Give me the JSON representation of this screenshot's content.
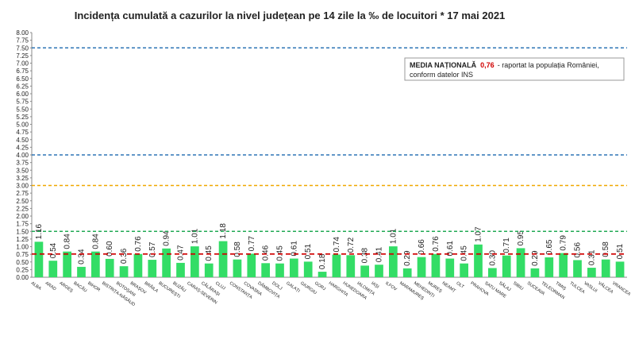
{
  "chart_data": {
    "type": "bar",
    "title": "Incidența cumulată a cazurilor la nivel județean pe 14 zile la ‰ de locuitori *  17 mai 2021",
    "categories": [
      "ALBA",
      "ARAD",
      "ARGEȘ",
      "BACĂU",
      "BIHOR",
      "BISTRIȚA-NĂSĂUD",
      "BOTOȘANI",
      "BRAȘOV",
      "BRĂILA",
      "BUCUREȘTI",
      "BUZĂU",
      "CARAȘ-SEVERIN",
      "CĂLĂRAȘI",
      "CLUJ",
      "CONSTANȚA",
      "COVASNA",
      "DÂMBOVIȚA",
      "DOLJ",
      "GALAȚI",
      "GIURGIU",
      "GORJ",
      "HARGHITA",
      "HUNEDOARA",
      "IALOMIȚA",
      "IAȘI",
      "ILFOV",
      "MARAMUREȘ",
      "MEHEDINȚI",
      "MUREȘ",
      "NEAMȚ",
      "OLT",
      "PRAHOVA",
      "SATU MARE",
      "SĂLAJ",
      "SIBIU",
      "SUCEAVA",
      "TELEORMAN",
      "TIMIȘ",
      "TULCEA",
      "VASLUI",
      "VÂLCEA",
      "VRANCEA"
    ],
    "values": [
      1.16,
      0.54,
      0.84,
      0.34,
      0.84,
      0.6,
      0.36,
      0.76,
      0.57,
      0.94,
      0.47,
      1.01,
      0.45,
      1.18,
      0.58,
      0.77,
      0.46,
      0.45,
      0.61,
      0.51,
      0.18,
      0.74,
      0.72,
      0.38,
      0.41,
      1.01,
      0.29,
      0.66,
      0.76,
      0.61,
      0.45,
      1.07,
      0.3,
      0.71,
      0.95,
      0.29,
      0.65,
      0.79,
      0.56,
      0.31,
      0.58,
      0.51
    ],
    "value_labels": [
      "1.16",
      "0.54",
      "0.84",
      "0.34",
      "0.84",
      "0.60",
      "0.36",
      "0.76",
      "0.57",
      "0.94",
      "0.47",
      "1.01",
      "0.45",
      "1.18",
      "0.58",
      "0.77",
      "0.46",
      "0.45",
      "0.61",
      "0.51",
      "0.18",
      "0.74",
      "0.72",
      "0.38",
      "0.41",
      "1.01",
      "0.29",
      "0.66",
      "0.76",
      "0.61",
      "0.45",
      "1.07",
      "0.30",
      "0.71",
      "0.95",
      "0.29",
      "0.65",
      "0.79",
      "0.56",
      "0.31",
      "0.58",
      "0.51"
    ],
    "color": "#33dd66",
    "ylim": [
      0,
      8
    ],
    "yticks": [
      {
        "value": 0,
        "label": "0.00"
      },
      {
        "value": 0.25,
        "label": "0.25"
      },
      {
        "value": 0.5,
        "label": "0.50"
      },
      {
        "value": 0.75,
        "label": "0.75"
      },
      {
        "value": 1,
        "label": "1.00"
      },
      {
        "value": 1.25,
        "label": "1.25"
      },
      {
        "value": 1.5,
        "label": "1.50"
      },
      {
        "value": 1.75,
        "label": "1.75"
      },
      {
        "value": 2,
        "label": "2.00"
      },
      {
        "value": 2.25,
        "label": "2.25"
      },
      {
        "value": 2.5,
        "label": "2.50"
      },
      {
        "value": 2.75,
        "label": "2.75"
      },
      {
        "value": 3,
        "label": "3.00"
      },
      {
        "value": 3.25,
        "label": "3.25"
      },
      {
        "value": 3.5,
        "label": "3.50"
      },
      {
        "value": 3.75,
        "label": "3.75"
      },
      {
        "value": 4,
        "label": "4.00"
      },
      {
        "value": 4.25,
        "label": "4.25"
      },
      {
        "value": 4.5,
        "label": "4.50"
      },
      {
        "value": 4.75,
        "label": "4.75"
      },
      {
        "value": 5,
        "label": "5.00"
      },
      {
        "value": 5.25,
        "label": "5.25"
      },
      {
        "value": 5.5,
        "label": "5.50"
      },
      {
        "value": 5.75,
        "label": "5.75"
      },
      {
        "value": 6,
        "label": "6.00"
      },
      {
        "value": 6.25,
        "label": "6.25"
      },
      {
        "value": 6.5,
        "label": "6.50"
      },
      {
        "value": 6.75,
        "label": "6.75"
      },
      {
        "value": 7,
        "label": "7.00"
      },
      {
        "value": 7.25,
        "label": "7.25"
      },
      {
        "value": 7.5,
        "label": "7.50"
      },
      {
        "value": 7.75,
        "label": "7.75"
      },
      {
        "value": 8,
        "label": "8.00"
      }
    ],
    "reference_lines": [
      {
        "value": 7.5,
        "color": "#2e75b6"
      },
      {
        "value": 4,
        "color": "#2e75b6"
      },
      {
        "value": 3,
        "color": "#f0a800"
      },
      {
        "value": 1.5,
        "color": "#22aa55"
      }
    ],
    "national_average": {
      "value": 0.76,
      "label": "0,76",
      "color": "#d00000",
      "name": "MEDIA NAȚIONALĂ",
      "note": "- raportat la populația României,",
      "note2": "conform datelor INS"
    }
  }
}
